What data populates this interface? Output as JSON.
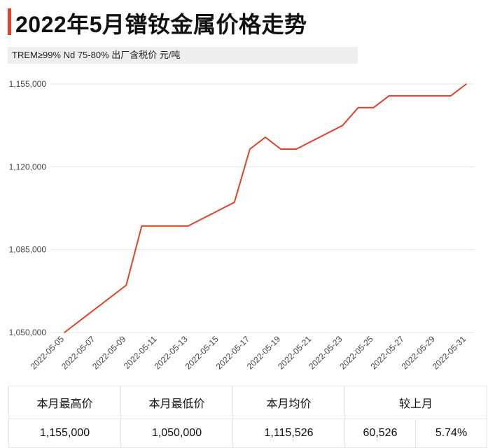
{
  "title": "2022年5月镨钕金属价格走势",
  "subtitle": "TREM≥99% Nd 75-80%  出厂含税价 元/吨",
  "colors": {
    "accent": "#e0422a",
    "line": "#e0422a",
    "grid": "#e6e6e6"
  },
  "chart_data": {
    "type": "line",
    "title": "2022年5月镨钕金属价格走势",
    "xlabel": "",
    "ylabel": "",
    "ylim": [
      1050000,
      1155000
    ],
    "yticks": [
      1050000,
      1085000,
      1120000,
      1155000
    ],
    "ytick_labels": [
      "1,050,000",
      "1,085,000",
      "1,120,000",
      "1,155,000"
    ],
    "xtick_labels": [
      "2022-05-05",
      "2022-05-07",
      "2022-05-09",
      "2022-05-11",
      "2022-05-13",
      "2022-05-15",
      "2022-05-17",
      "2022-05-19",
      "2022-05-21",
      "2022-05-23",
      "2022-05-25",
      "2022-05-27",
      "2022-05-29",
      "2022-05-31"
    ],
    "grid": true,
    "x": [
      "2022-05-05",
      "2022-05-09",
      "2022-05-10",
      "2022-05-13",
      "2022-05-16",
      "2022-05-17",
      "2022-05-18",
      "2022-05-19",
      "2022-05-20",
      "2022-05-23",
      "2022-05-24",
      "2022-05-25",
      "2022-05-26",
      "2022-05-30",
      "2022-05-31"
    ],
    "series": [
      {
        "values": [
          1050000,
          1070000,
          1095000,
          1095000,
          1105000,
          1127500,
          1132500,
          1127500,
          1127500,
          1137500,
          1145000,
          1145000,
          1150000,
          1150000,
          1155000
        ]
      }
    ]
  },
  "stats": {
    "headers": [
      "本月最高价",
      "本月最低价",
      "本月均价",
      "较上月"
    ],
    "values": [
      "1,155,000",
      "1,050,000",
      "1,115,526",
      "60,526",
      "5.74%"
    ]
  }
}
